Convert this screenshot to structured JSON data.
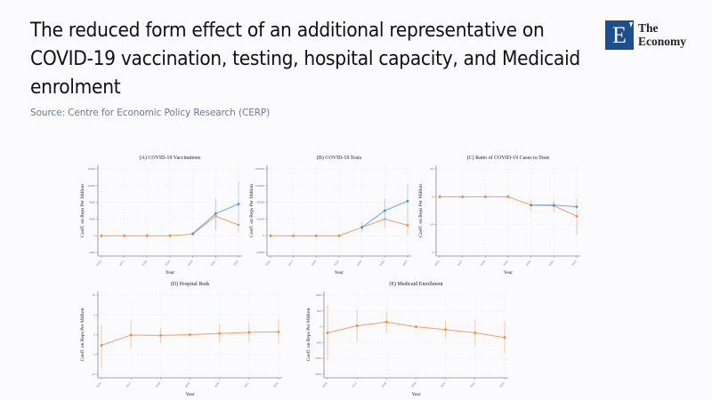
{
  "header": {
    "title": "The reduced form effect of an additional representative on COVID-19 vaccination, testing, hospital capacity, and Medicaid enrolment",
    "source": "Source: Centre for Economic Policy Research (CERP)"
  },
  "logo": {
    "letter": "E",
    "line1": "The",
    "line2": "Economy",
    "brand_color": "#1f4e8c"
  },
  "colors": {
    "orange": "#f0883a",
    "blue": "#4a8fe0",
    "orange_ci": "#f3c9a6",
    "blue_ci": "#b9d3f2"
  },
  "chart_data": [
    {
      "id": "A",
      "type": "line",
      "title": "(A) COVID-19 Vaccinations",
      "xlabel": "Year",
      "ylabel": "Coeff. on Reps Per Million",
      "x": [
        "2016",
        "2017",
        "2018",
        "2019",
        "2020",
        "2021",
        "2022"
      ],
      "ylim": [
        -4000,
        16000
      ],
      "yticks": [
        -4000,
        0,
        4000,
        8000,
        12000,
        16000
      ],
      "grid": true,
      "series": [
        {
          "name": "orange",
          "color": "orange",
          "values": [
            0,
            0,
            0,
            0,
            400,
            4700,
            2600
          ],
          "ci_low": [
            null,
            null,
            null,
            null,
            null,
            1300,
            700
          ],
          "ci_high": [
            null,
            null,
            null,
            null,
            null,
            8500,
            4500
          ]
        },
        {
          "name": "blue",
          "color": "blue",
          "values": [
            null,
            null,
            null,
            null,
            500,
            5300,
            7600
          ],
          "ci_low": [
            null,
            null,
            null,
            null,
            null,
            1500,
            2000
          ],
          "ci_high": [
            null,
            null,
            null,
            null,
            null,
            9000,
            13000
          ]
        }
      ]
    },
    {
      "id": "B",
      "type": "line",
      "title": "(B) COVID-19 Tests",
      "xlabel": "Year",
      "ylabel": "Coeff. on Reps Per Million",
      "x": [
        "2016",
        "2017",
        "2018",
        "2019",
        "2020",
        "2021",
        "2022"
      ],
      "ylim": [
        -40000,
        160000
      ],
      "yticks": [
        -40000,
        0,
        40000,
        80000,
        120000,
        160000
      ],
      "grid": true,
      "series": [
        {
          "name": "orange",
          "color": "orange",
          "values": [
            0,
            0,
            0,
            0,
            20000,
            40000,
            25000
          ],
          "ci_low": [
            null,
            null,
            null,
            null,
            10000,
            18000,
            2000
          ],
          "ci_high": [
            null,
            null,
            null,
            null,
            32000,
            62000,
            48000
          ]
        },
        {
          "name": "blue",
          "color": "blue",
          "values": [
            null,
            null,
            null,
            null,
            20000,
            60000,
            83000
          ],
          "ci_low": [
            null,
            null,
            null,
            null,
            8000,
            30000,
            40000
          ],
          "ci_high": [
            null,
            null,
            null,
            null,
            32000,
            90000,
            125000
          ]
        }
      ]
    },
    {
      "id": "C",
      "type": "line",
      "title": "(C) Ratio of COVID-19 Cases to Tests",
      "xlabel": "Year",
      "ylabel": "Coeff. on Reps Per Million",
      "x": [
        "2016",
        "2017",
        "2018",
        "2019",
        "2020",
        "2021",
        "2022"
      ],
      "ylim": [
        -0.1,
        0.05
      ],
      "yticks": [
        -0.1,
        -0.05,
        0,
        0.05
      ],
      "ytick_labels": [
        "-.1",
        "-.05",
        "0",
        ".05"
      ],
      "grid": true,
      "series": [
        {
          "name": "orange",
          "color": "orange",
          "values": [
            0,
            0,
            0,
            0,
            -0.015,
            -0.016,
            -0.035
          ],
          "ci_low": [
            null,
            null,
            null,
            null,
            -0.025,
            -0.027,
            -0.068
          ],
          "ci_high": [
            null,
            null,
            null,
            null,
            -0.005,
            -0.005,
            -0.003
          ]
        },
        {
          "name": "blue",
          "color": "blue",
          "values": [
            null,
            null,
            null,
            null,
            -0.015,
            -0.015,
            -0.018
          ],
          "ci_low": [
            null,
            null,
            null,
            null,
            null,
            null,
            null
          ],
          "ci_high": [
            null,
            null,
            null,
            null,
            null,
            null,
            null
          ]
        }
      ]
    },
    {
      "id": "D",
      "type": "line",
      "title": "(D) Hospital Beds",
      "xlabel": "Year",
      "ylabel": "Coeff. on Reps Per Million",
      "x": [
        "2016",
        "2017",
        "2018",
        "2019",
        "2020",
        "2021",
        "2022"
      ],
      "ylim": [
        -10,
        10
      ],
      "yticks": [
        -10,
        -5,
        0,
        5,
        10
      ],
      "grid": true,
      "series": [
        {
          "name": "orange",
          "color": "orange",
          "values": [
            -2.7,
            -0.1,
            -0.2,
            0,
            0.3,
            0.6,
            0.7
          ],
          "ci_low": [
            -8.2,
            -3.5,
            -2.2,
            null,
            -2.0,
            -1.8,
            -2.3
          ],
          "ci_high": [
            2.5,
            3.4,
            1.8,
            null,
            2.7,
            3.1,
            3.9
          ]
        }
      ]
    },
    {
      "id": "E",
      "type": "line",
      "title": "(E) Medicaid Enrollment",
      "xlabel": "Year",
      "ylabel": "Coeff. on Reps Per Million",
      "x": [
        "2016",
        "2017",
        "2018",
        "2019",
        "2020",
        "2021",
        "2022"
      ],
      "ylim": [
        -1500,
        1000
      ],
      "yticks": [
        -1500,
        -1000,
        -500,
        0,
        500,
        1000
      ],
      "grid": true,
      "series": [
        {
          "name": "orange",
          "color": "orange",
          "values": [
            -190,
            30,
            150,
            0,
            -90,
            -190,
            -340
          ],
          "ci_low": [
            -1060,
            -490,
            -190,
            null,
            -370,
            -600,
            -840
          ],
          "ci_high": [
            680,
            540,
            480,
            null,
            190,
            210,
            160
          ]
        }
      ]
    }
  ]
}
